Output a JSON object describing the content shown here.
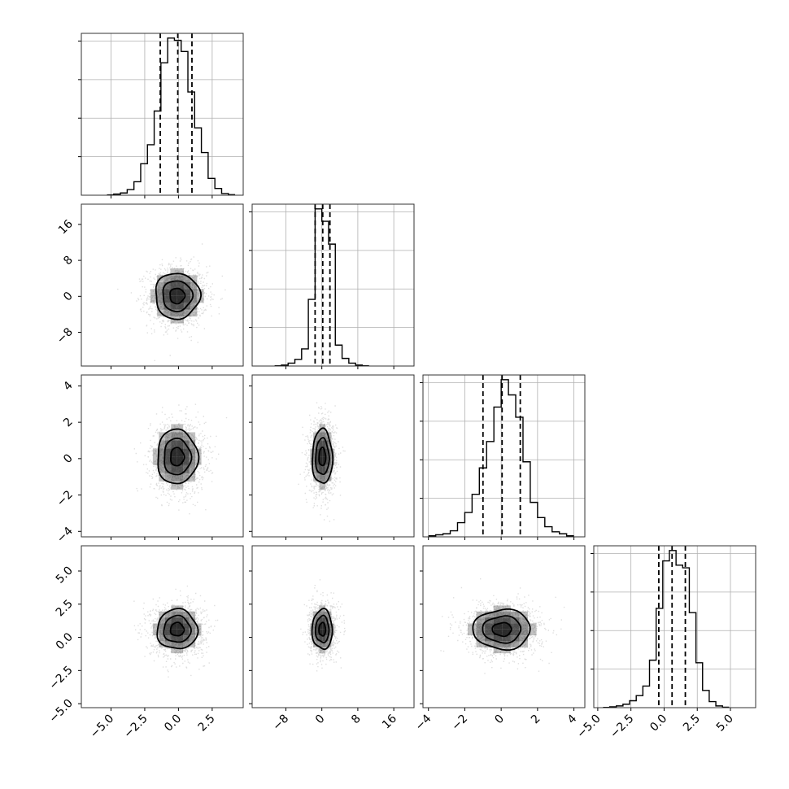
{
  "chart_data": {
    "type": "corner",
    "variables": [
      {
        "range": [
          -7.2,
          4.8
        ],
        "ticks": [
          -5.0,
          -2.5,
          0.0,
          2.5
        ],
        "tick_labels": [
          "−5.0",
          "−2.5",
          "0.0",
          "2.5"
        ],
        "quantiles": [
          -1.35,
          -0.05,
          1.0
        ]
      },
      {
        "range": [
          -15.5,
          20.5
        ],
        "ticks": [
          -8,
          0,
          8,
          16
        ],
        "tick_labels": [
          "−8",
          "0",
          "8",
          "16"
        ],
        "quantiles": [
          -1.5,
          0.2,
          1.8
        ]
      },
      {
        "range": [
          -4.3,
          4.6
        ],
        "ticks": [
          -4,
          -2,
          0,
          2,
          4
        ],
        "tick_labels": [
          "−4",
          "−2",
          "0",
          "2",
          "4"
        ],
        "quantiles": [
          -1.0,
          0.05,
          1.05
        ]
      },
      {
        "range": [
          -5.3,
          6.9
        ],
        "ticks": [
          -5.0,
          -2.5,
          0.0,
          2.5,
          5.0
        ],
        "tick_labels": [
          "−5.0",
          "−2.5",
          "0.0",
          "2.5",
          "5.0"
        ],
        "quantiles": [
          -0.4,
          0.6,
          1.6
        ]
      }
    ],
    "diagonal": [
      {
        "bin_edges": [
          -5.3,
          -4.8,
          -4.3,
          -3.8,
          -3.3,
          -2.8,
          -2.3,
          -1.8,
          -1.3,
          -0.8,
          -0.3,
          0.2,
          0.7,
          1.2,
          1.7,
          2.2,
          2.7,
          3.2,
          3.7,
          4.2
        ],
        "counts": [
          0.3,
          1,
          2,
          5,
          12,
          28,
          45,
          75,
          118,
          140,
          138,
          128,
          92,
          60,
          38,
          15,
          6,
          1.5,
          0.5
        ]
      },
      {
        "bin_edges": [
          -10.5,
          -9,
          -7.5,
          -6,
          -4.5,
          -3,
          -1.5,
          0,
          1.5,
          3,
          4.5,
          6,
          7.5,
          9,
          10.5
        ],
        "counts": [
          0.3,
          1,
          3,
          7,
          18,
          70,
          165,
          152,
          128,
          22,
          8,
          3,
          1,
          0.3
        ]
      },
      {
        "bin_edges": [
          -4,
          -3.6,
          -3.2,
          -2.8,
          -2.4,
          -2.0,
          -1.6,
          -1.2,
          -0.8,
          -0.4,
          0,
          0.4,
          0.8,
          1.2,
          1.6,
          2.0,
          2.4,
          2.8,
          3.2,
          3.6,
          4.0
        ],
        "counts": [
          1,
          2,
          3,
          6,
          14,
          24,
          42,
          68,
          94,
          128,
          155,
          140,
          118,
          74,
          34,
          19,
          10,
          5,
          3,
          1
        ]
      },
      {
        "bin_edges": [
          -4.6,
          -4.1,
          -3.6,
          -3.1,
          -2.6,
          -2.1,
          -1.6,
          -1.1,
          -0.6,
          -0.1,
          0.4,
          0.9,
          1.4,
          1.9,
          2.4,
          2.9,
          3.4,
          3.9,
          4.4,
          4.9
        ],
        "counts": [
          0.3,
          1,
          2,
          4,
          8,
          14,
          25,
          55,
          115,
          170,
          182,
          165,
          162,
          110,
          52,
          20,
          7,
          2,
          0.5
        ]
      }
    ],
    "joint": [
      {
        "row": 1,
        "col": 0,
        "mean": [
          -0.1,
          0.1
        ],
        "sd": [
          1.1,
          3.4
        ]
      },
      {
        "row": 2,
        "col": 0,
        "mean": [
          -0.1,
          0.1
        ],
        "sd": [
          1.0,
          1.0
        ]
      },
      {
        "row": 2,
        "col": 1,
        "mean": [
          0.1,
          0.1
        ],
        "sd": [
          1.5,
          1.0
        ]
      },
      {
        "row": 3,
        "col": 0,
        "mean": [
          -0.1,
          0.6
        ],
        "sd": [
          1.0,
          1.0
        ]
      },
      {
        "row": 3,
        "col": 1,
        "mean": [
          0.1,
          0.6
        ],
        "sd": [
          1.5,
          1.0
        ]
      },
      {
        "row": 3,
        "col": 2,
        "mean": [
          0.05,
          0.6
        ],
        "sd": [
          1.05,
          1.0
        ]
      }
    ],
    "contour_levels_sigma": [
      0.5,
      1.0,
      1.5
    ],
    "grid": true,
    "colors": {
      "line": "#000000",
      "grid": "#b0b0b0",
      "points": "#000000",
      "density": "#000000"
    }
  }
}
